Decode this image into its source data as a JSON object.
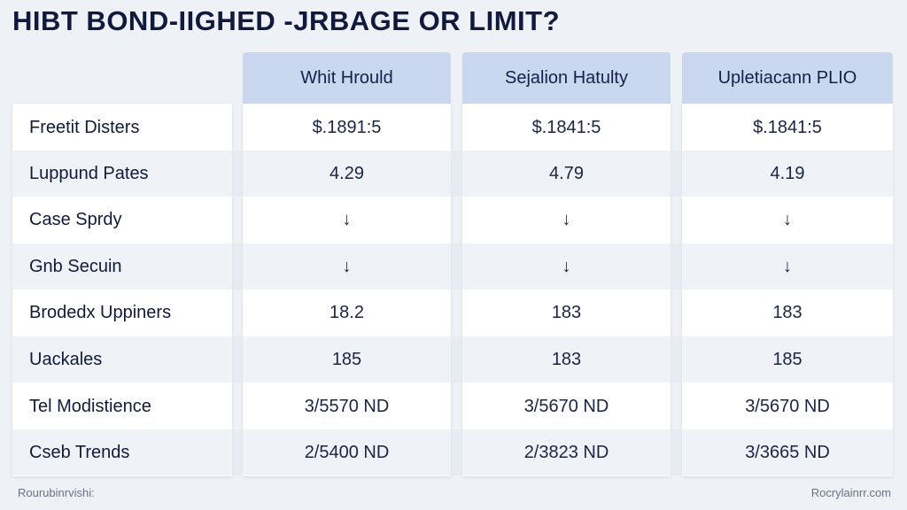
{
  "title": "HIBT BOND-IIGHED -JRBAGE OR LIMIT?",
  "columns": [
    "Whit Hrould",
    "Sejalion Hatulty",
    "Upletiacann PLIO"
  ],
  "rows": [
    {
      "label": "Freetit Disters",
      "values": [
        "$.1891:5",
        "$.1841:5",
        "$.1841:5"
      ]
    },
    {
      "label": "Luppund Pates",
      "values": [
        "4.29",
        "4.79",
        "4.19"
      ]
    },
    {
      "label": "Case Sprdy",
      "values": [
        "↓",
        "↓",
        "↓"
      ]
    },
    {
      "label": "Gnb Secuin",
      "values": [
        "↓",
        "↓",
        "↓"
      ]
    },
    {
      "label": "Brodedx Uppiners",
      "values": [
        "18.2",
        "183",
        "183"
      ]
    },
    {
      "label": "Uackales",
      "values": [
        "185",
        "183",
        "185"
      ]
    },
    {
      "label": "Tel Modistience",
      "values": [
        "3/5570 ND",
        "3/5670 ND",
        "3/5670 ND"
      ]
    },
    {
      "label": "Cseb Trends",
      "values": [
        "2/5400 ND",
        "2/3823 ND",
        "3/3665 ND"
      ]
    }
  ],
  "footer": {
    "left": "Rourubinrvishi:",
    "right": "Rocrylainrr.com"
  },
  "colors": {
    "header_bg": "#c9d7ef",
    "page_bg": "#eef1f6",
    "text": "#16204a"
  }
}
